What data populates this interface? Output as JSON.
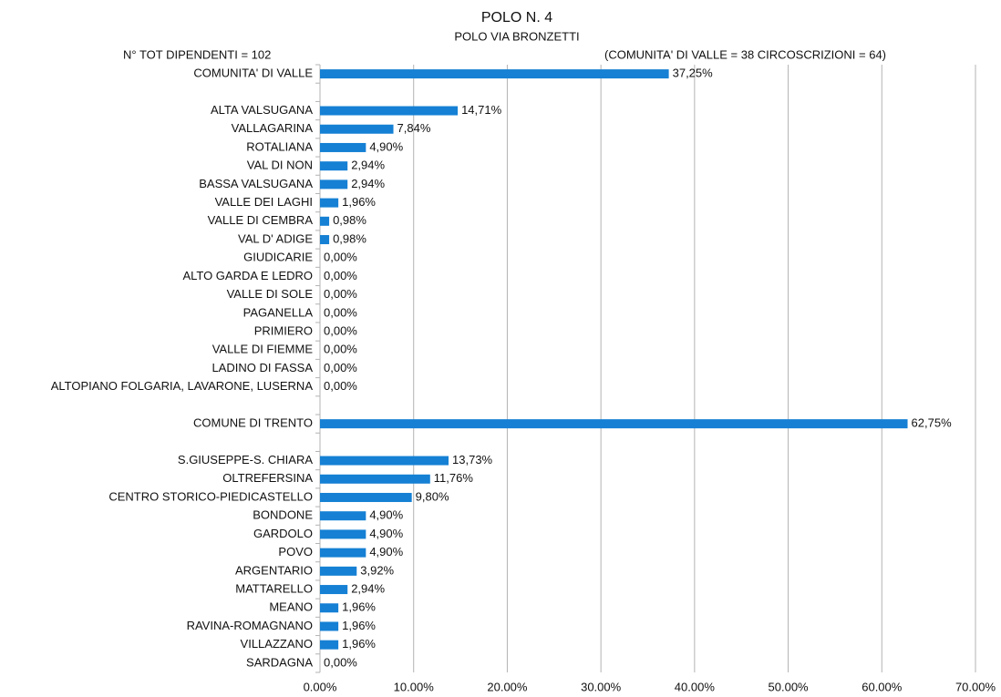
{
  "chart_data": {
    "type": "hbar",
    "title": "POLO N. 4",
    "subtitle": "POLO VIA BRONZETTI",
    "annotations": [
      "N° TOT DIPENDENTI = 102",
      "(COMUNITA' DI VALLE = 38   CIRCOSCRIZIONI = 64)"
    ],
    "categories": [
      "COMUNITA' DI VALLE",
      null,
      "ALTA VALSUGANA",
      "VALLAGARINA",
      "ROTALIANA",
      "VAL DI NON",
      "BASSA VALSUGANA",
      "VALLE DEI LAGHI",
      "VALLE DI CEMBRA",
      "VAL D' ADIGE",
      "GIUDICARIE",
      "ALTO GARDA E LEDRO",
      "VALLE DI SOLE",
      "PAGANELLA",
      "PRIMIERO",
      "VALLE DI FIEMME",
      "LADINO DI FASSA",
      "ALTOPIANO FOLGARIA, LAVARONE, LUSERNA",
      null,
      "COMUNE DI TRENTO",
      null,
      "S.GIUSEPPE-S. CHIARA",
      "OLTREFERSINA",
      "CENTRO STORICO-PIEDICASTELLO",
      "BONDONE",
      "GARDOLO",
      "POVO",
      "ARGENTARIO",
      "MATTARELLO",
      "MEANO",
      "RAVINA-ROMAGNANO",
      "VILLAZZANO",
      "SARDAGNA"
    ],
    "values": [
      37.25,
      null,
      14.71,
      7.84,
      4.9,
      2.94,
      2.94,
      1.96,
      0.98,
      0.98,
      0,
      0,
      0,
      0,
      0,
      0,
      0,
      0,
      null,
      62.75,
      null,
      13.73,
      11.76,
      9.8,
      4.9,
      4.9,
      4.9,
      3.92,
      2.94,
      1.96,
      1.96,
      1.96,
      0
    ],
    "value_labels": [
      "37,25%",
      null,
      "14,71%",
      "7,84%",
      "4,90%",
      "2,94%",
      "2,94%",
      "1,96%",
      "0,98%",
      "0,98%",
      "0,00%",
      "0,00%",
      "0,00%",
      "0,00%",
      "0,00%",
      "0,00%",
      "0,00%",
      "0,00%",
      null,
      "62,75%",
      null,
      "13,73%",
      "11,76%",
      "9,80%",
      "4,90%",
      "4,90%",
      "4,90%",
      "3,92%",
      "2,94%",
      "1,96%",
      "1,96%",
      "1,96%",
      "0,00%"
    ],
    "color": "#1580d4",
    "xlim": [
      0,
      70
    ],
    "xticks": [
      {
        "value": 0,
        "label": "0.00%"
      },
      {
        "value": 10,
        "label": "10.00%"
      },
      {
        "value": 20,
        "label": "20.00%"
      },
      {
        "value": 30,
        "label": "30.00%"
      },
      {
        "value": 40,
        "label": "40.00%"
      },
      {
        "value": 50,
        "label": "50.00%"
      },
      {
        "value": 60,
        "label": "60.00%"
      },
      {
        "value": 70,
        "label": "70.00%"
      }
    ],
    "grid": true
  }
}
